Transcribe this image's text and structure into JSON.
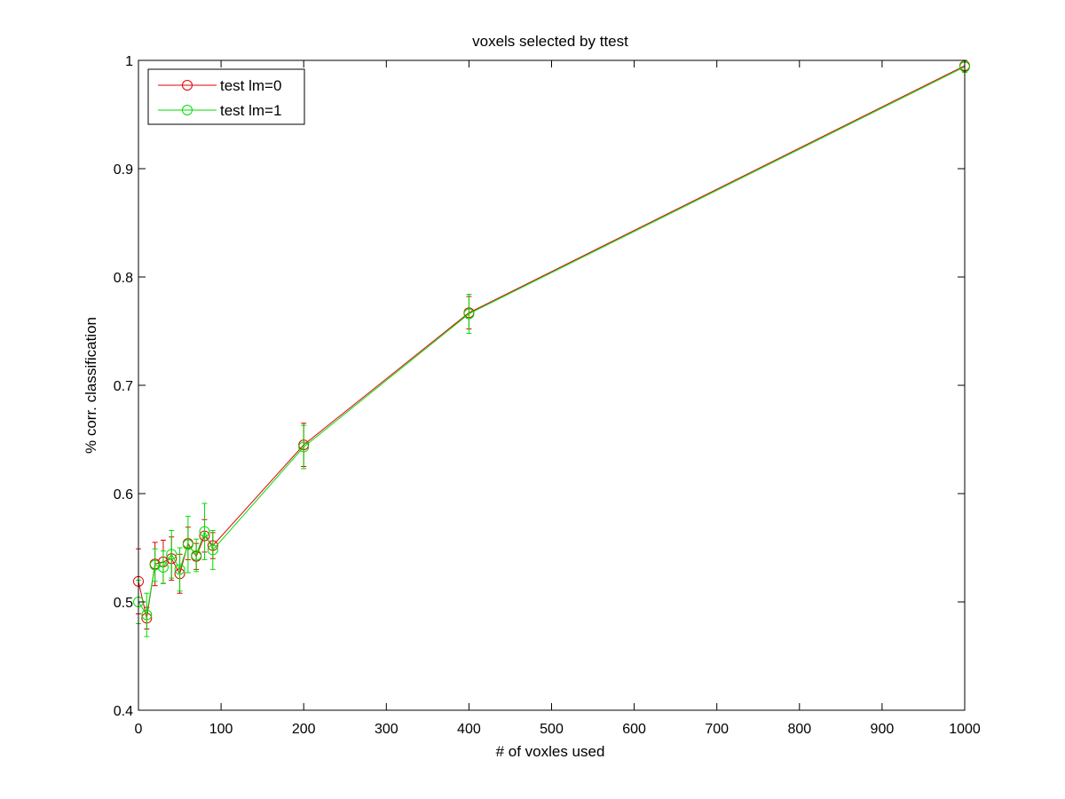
{
  "chart_data": {
    "type": "line",
    "title": "voxels selected by ttest",
    "xlabel": "# of voxles used",
    "ylabel": "% corr. classification",
    "xlim": [
      0,
      1000
    ],
    "ylim": [
      0.4,
      1
    ],
    "xticks": [
      "0",
      "100",
      "200",
      "300",
      "400",
      "500",
      "600",
      "700",
      "800",
      "900",
      "1000"
    ],
    "yticks": [
      "0.4",
      "0.5",
      "0.6",
      "0.7",
      "0.8",
      "0.9",
      "1"
    ],
    "grid": false,
    "legend_position": "top-left",
    "marker": "circle",
    "error_bars": true,
    "series": [
      {
        "name": "test lm=0",
        "color": "#e00000",
        "x": [
          0,
          10,
          20,
          30,
          40,
          50,
          60,
          70,
          80,
          90,
          200,
          400,
          1000
        ],
        "y": [
          0.519,
          0.485,
          0.535,
          0.537,
          0.54,
          0.526,
          0.554,
          0.542,
          0.561,
          0.552,
          0.645,
          0.767,
          0.995
        ],
        "err": [
          0.03,
          0.01,
          0.02,
          0.02,
          0.02,
          0.018,
          0.015,
          0.012,
          0.015,
          0.012,
          0.02,
          0.015,
          0.005
        ]
      },
      {
        "name": "test lm=1",
        "color": "#00dd00",
        "x": [
          0,
          10,
          20,
          30,
          40,
          50,
          60,
          70,
          80,
          90,
          200,
          400,
          1000
        ],
        "y": [
          0.5,
          0.488,
          0.534,
          0.532,
          0.544,
          0.53,
          0.553,
          0.543,
          0.565,
          0.548,
          0.643,
          0.766,
          0.994
        ],
        "err": [
          0.02,
          0.02,
          0.015,
          0.015,
          0.022,
          0.02,
          0.026,
          0.015,
          0.026,
          0.018,
          0.02,
          0.018,
          0.005
        ]
      }
    ]
  }
}
